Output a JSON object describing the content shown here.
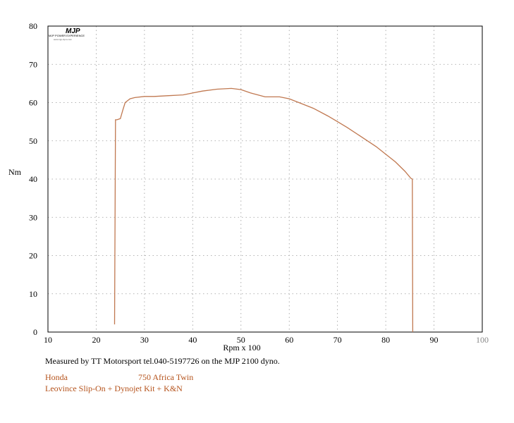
{
  "chart_data": {
    "type": "line",
    "xlabel": "Rpm x 100",
    "ylabel": "Nm",
    "xlim": [
      10,
      100
    ],
    "ylim": [
      0,
      80
    ],
    "x_ticks": [
      "10",
      "20",
      "30",
      "40",
      "50",
      "60",
      "70",
      "80",
      "90",
      "100"
    ],
    "y_ticks": [
      "0",
      "10",
      "20",
      "30",
      "40",
      "50",
      "60",
      "70",
      "80"
    ],
    "grid": true,
    "series": [
      {
        "color": "#c07850",
        "x": [
          23.8,
          24.0,
          24.3,
          25.0,
          25.5,
          26.0,
          27.0,
          28.0,
          30.0,
          32.0,
          35.0,
          38.0,
          40.0,
          42.0,
          45.0,
          48.0,
          50.0,
          52.0,
          55.0,
          58.0,
          60.0,
          62.0,
          65.0,
          68.0,
          70.0,
          72.0,
          75.0,
          78.0,
          80.0,
          82.0,
          84.0,
          85.2,
          85.5,
          85.6
        ],
        "y": [
          2.0,
          55.5,
          55.5,
          55.8,
          58.0,
          60.0,
          61.0,
          61.3,
          61.6,
          61.6,
          61.8,
          62.0,
          62.5,
          63.0,
          63.5,
          63.7,
          63.4,
          62.5,
          61.5,
          61.5,
          61.0,
          60.0,
          58.5,
          56.5,
          55.0,
          53.5,
          51.0,
          48.5,
          46.5,
          44.5,
          42.0,
          40.2,
          40.0,
          0.0
        ]
      }
    ]
  },
  "logo": {
    "mark": "MJP",
    "line1": "MJP POWER EXPERIENCE",
    "line2": "www.mjp-dyno.com"
  },
  "caption": "Measured by TT Motorsport tel.040-5197726 on the MJP 2100 dyno.",
  "vehicle": {
    "make": "Honda",
    "model": "750 Africa Twin",
    "mods": "Leovince Slip-On + Dynojet Kit + K&N"
  },
  "colors": {
    "curve": "#c07850",
    "vehicle_text": "#b5531c",
    "grid": "#9a9a9a",
    "frame": "#000000"
  }
}
